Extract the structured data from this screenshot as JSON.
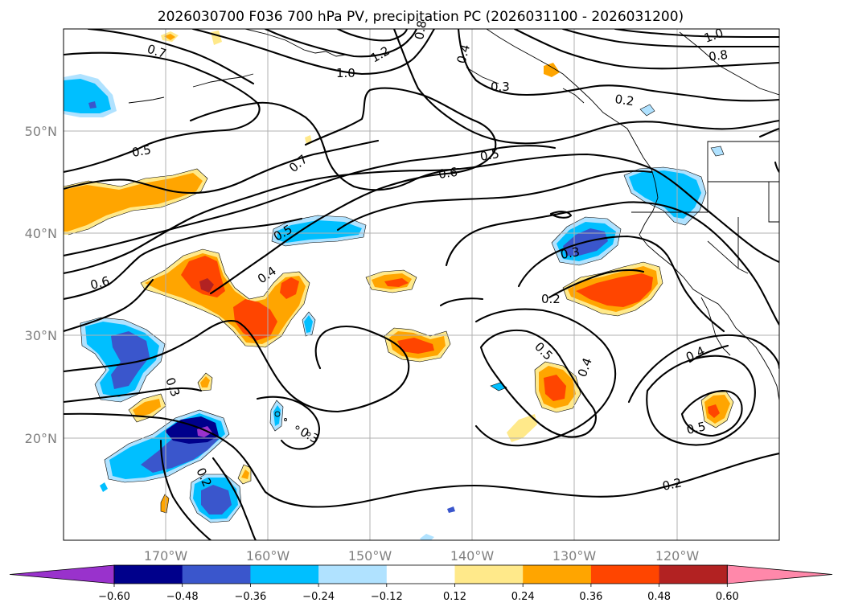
{
  "title": "2026030700 F036 700 hPa PV, precipitation PC (2026031100 - 2026031200)",
  "map": {
    "lon_ticks": [
      "170°W",
      "160°W",
      "150°W",
      "140°W",
      "130°W",
      "120°W"
    ],
    "lat_ticks": [
      "50°N",
      "40°N",
      "30°N",
      "20°N"
    ],
    "lon_range": [
      -180,
      -110
    ],
    "lat_range": [
      10,
      60
    ],
    "gridlines": true
  },
  "colorbar": {
    "ticks": [
      "−0.60",
      "−0.48",
      "−0.36",
      "−0.24",
      "−0.12",
      "0.12",
      "0.24",
      "0.36",
      "0.48",
      "0.60"
    ],
    "colors": [
      "#9932cc",
      "#00008b",
      "#3a56cc",
      "#00bfff",
      "#b0e2ff",
      "#ffffff",
      "#ffe98a",
      "#ffa500",
      "#ff4500",
      "#b22222",
      "#ff88aa"
    ],
    "extend": "both"
  },
  "contour_labels": [
    "0.7",
    "1.0",
    "1.2",
    "0.8",
    "0.4",
    "0.3",
    "0.2",
    "1.0",
    "0.8",
    "0.5",
    "0.7",
    "0.6",
    "0.5",
    "0.4",
    "0.6",
    "0.3",
    "0.2",
    "0.5",
    "0.4",
    "0.3",
    "0.5",
    "0.4",
    "0.5",
    "0.2",
    "0.3",
    "0.2"
  ]
}
